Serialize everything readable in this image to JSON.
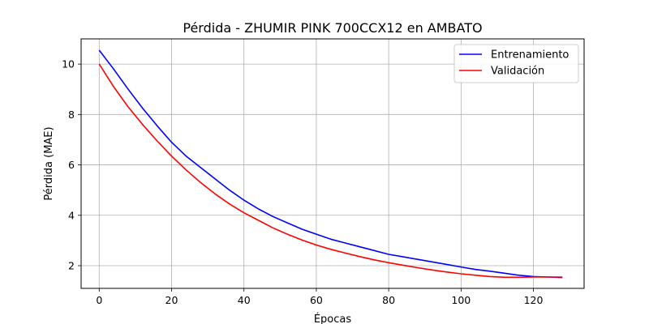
{
  "chart_data": {
    "type": "line",
    "title": "Pérdida - ZHUMIR PINK 700CCX12 en AMBATO",
    "xlabel": "Épocas",
    "ylabel": "Pérdida (MAE)",
    "xlim": [
      -5,
      134
    ],
    "ylim": [
      1.1,
      11.0
    ],
    "xticks": [
      0,
      20,
      40,
      60,
      80,
      100,
      120
    ],
    "yticks": [
      2,
      4,
      6,
      8,
      10
    ],
    "grid": true,
    "legend_position": "top-right",
    "series": [
      {
        "name": "Entrenamiento",
        "color": "#0000ff",
        "x": [
          0,
          4,
          8,
          12,
          16,
          20,
          24,
          28,
          32,
          36,
          40,
          44,
          48,
          52,
          56,
          60,
          64,
          68,
          72,
          76,
          80,
          84,
          88,
          92,
          96,
          100,
          104,
          108,
          112,
          116,
          120,
          124,
          128
        ],
        "y": [
          10.55,
          9.8,
          9.0,
          8.25,
          7.55,
          6.9,
          6.35,
          5.9,
          5.45,
          5.0,
          4.6,
          4.25,
          3.95,
          3.7,
          3.45,
          3.25,
          3.05,
          2.9,
          2.75,
          2.6,
          2.45,
          2.35,
          2.25,
          2.15,
          2.05,
          1.95,
          1.85,
          1.78,
          1.7,
          1.62,
          1.57,
          1.55,
          1.53
        ]
      },
      {
        "name": "Validación",
        "color": "#ff0000",
        "x": [
          0,
          4,
          8,
          12,
          16,
          20,
          24,
          28,
          32,
          36,
          40,
          44,
          48,
          52,
          56,
          60,
          64,
          68,
          72,
          76,
          80,
          84,
          88,
          92,
          96,
          100,
          104,
          108,
          112,
          116,
          120,
          124,
          128
        ],
        "y": [
          10.0,
          9.1,
          8.3,
          7.6,
          6.95,
          6.35,
          5.8,
          5.3,
          4.85,
          4.45,
          4.1,
          3.8,
          3.5,
          3.25,
          3.02,
          2.82,
          2.65,
          2.5,
          2.36,
          2.23,
          2.12,
          2.02,
          1.92,
          1.83,
          1.75,
          1.68,
          1.62,
          1.57,
          1.54,
          1.54,
          1.55,
          1.55,
          1.55
        ]
      }
    ]
  }
}
